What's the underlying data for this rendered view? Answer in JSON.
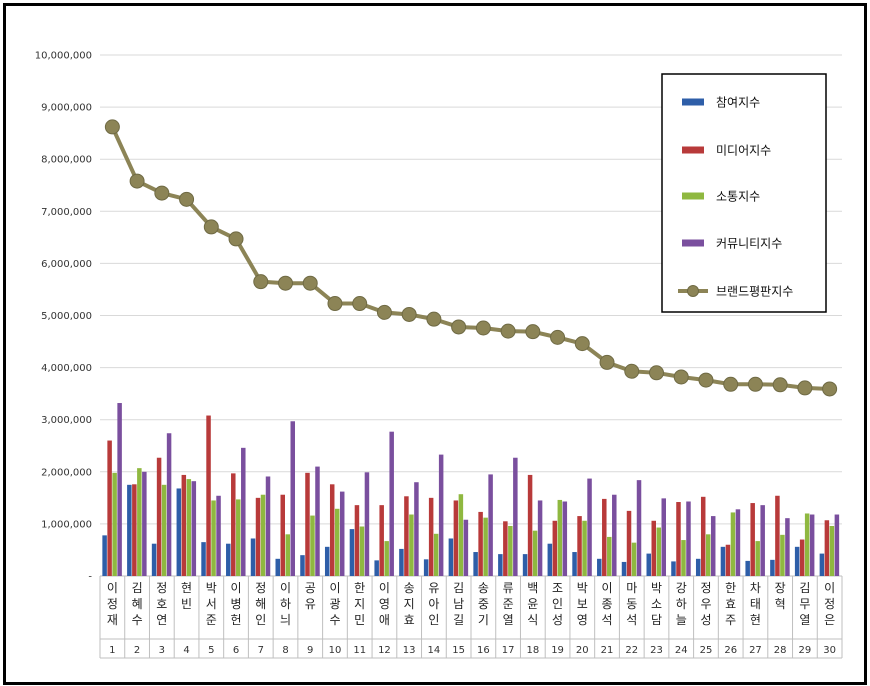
{
  "chart_data": {
    "type": "bar",
    "title": "",
    "xlabel": "",
    "ylabel": "",
    "ylim": [
      0,
      10000000
    ],
    "yticks": [
      "-",
      "1,000,000",
      "2,000,000",
      "3,000,000",
      "4,000,000",
      "5,000,000",
      "6,000,000",
      "7,000,000",
      "8,000,000",
      "9,000,000",
      "10,000,000"
    ],
    "categories": [
      "이정재",
      "김혜수",
      "정호연",
      "현빈",
      "박서준",
      "이병헌",
      "정해인",
      "이하늬",
      "공유",
      "이광수",
      "한지민",
      "이영애",
      "송지효",
      "유아인",
      "김남길",
      "송중기",
      "류준열",
      "백윤식",
      "조인성",
      "박보영",
      "이종석",
      "마동석",
      "박소담",
      "강하늘",
      "정우성",
      "한효주",
      "차태현",
      "장혁",
      "김무열",
      "이정은"
    ],
    "ranks": [
      "1",
      "2",
      "3",
      "4",
      "5",
      "6",
      "7",
      "8",
      "9",
      "10",
      "11",
      "12",
      "13",
      "14",
      "15",
      "16",
      "17",
      "18",
      "19",
      "20",
      "21",
      "22",
      "23",
      "24",
      "25",
      "26",
      "27",
      "28",
      "29",
      "30"
    ],
    "legend_position": "top-right",
    "series": [
      {
        "name": "참여지수",
        "kind": "bar",
        "color": "#2e5ea8",
        "values": [
          780000,
          1750000,
          620000,
          1680000,
          650000,
          620000,
          720000,
          330000,
          400000,
          560000,
          900000,
          300000,
          520000,
          320000,
          720000,
          460000,
          420000,
          420000,
          620000,
          460000,
          330000,
          270000,
          430000,
          280000,
          330000,
          560000,
          290000,
          310000,
          560000,
          430000
        ]
      },
      {
        "name": "미디어지수",
        "kind": "bar",
        "color": "#b83a3a",
        "values": [
          2600000,
          1760000,
          2270000,
          1940000,
          3080000,
          1970000,
          1500000,
          1560000,
          1980000,
          1760000,
          1360000,
          1360000,
          1530000,
          1500000,
          1450000,
          1230000,
          1050000,
          1940000,
          1060000,
          1150000,
          1480000,
          1250000,
          1060000,
          1420000,
          1520000,
          600000,
          1400000,
          1540000,
          700000,
          1070000
        ]
      },
      {
        "name": "소통지수",
        "kind": "bar",
        "color": "#8fb840",
        "values": [
          1980000,
          2070000,
          1750000,
          1860000,
          1450000,
          1470000,
          1560000,
          800000,
          1160000,
          1290000,
          950000,
          670000,
          1180000,
          810000,
          1570000,
          1120000,
          960000,
          870000,
          1460000,
          1060000,
          750000,
          640000,
          930000,
          690000,
          800000,
          1220000,
          670000,
          790000,
          1200000,
          960000
        ]
      },
      {
        "name": "커뮤니티지수",
        "kind": "bar",
        "color": "#7a4f9e",
        "values": [
          3320000,
          2000000,
          2740000,
          1820000,
          1540000,
          2460000,
          1910000,
          2970000,
          2100000,
          1620000,
          1990000,
          2770000,
          1800000,
          2330000,
          1080000,
          1950000,
          2270000,
          1450000,
          1430000,
          1870000,
          1560000,
          1840000,
          1490000,
          1430000,
          1150000,
          1280000,
          1360000,
          1110000,
          1180000,
          1180000
        ]
      },
      {
        "name": "브랜드평판지수",
        "kind": "line",
        "color": "#8c8456",
        "values": [
          8620000,
          7580000,
          7350000,
          7230000,
          6700000,
          6470000,
          5650000,
          5620000,
          5620000,
          5230000,
          5230000,
          5060000,
          5020000,
          4930000,
          4780000,
          4760000,
          4700000,
          4690000,
          4580000,
          4460000,
          4100000,
          3930000,
          3900000,
          3820000,
          3760000,
          3680000,
          3680000,
          3670000,
          3610000,
          3590000
        ]
      }
    ]
  }
}
